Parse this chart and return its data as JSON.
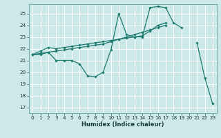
{
  "xlabel": "Humidex (Indice chaleur)",
  "xlim": [
    -0.5,
    23.5
  ],
  "ylim": [
    16.5,
    25.8
  ],
  "yticks": [
    17,
    18,
    19,
    20,
    21,
    22,
    23,
    24,
    25
  ],
  "xticks": [
    0,
    1,
    2,
    3,
    4,
    5,
    6,
    7,
    8,
    9,
    10,
    11,
    12,
    13,
    14,
    15,
    16,
    17,
    18,
    19,
    20,
    21,
    22,
    23
  ],
  "background_color": "#cde8e8",
  "grid_color": "#ffffff",
  "line_color": "#1a7a6e",
  "series": [
    [
      21.5,
      21.5,
      21.7,
      21.0,
      21.0,
      21.0,
      20.7,
      19.7,
      19.6,
      20.0,
      21.9,
      25.0,
      23.2,
      23.0,
      23.0,
      25.5,
      25.6,
      25.5,
      24.2,
      23.8,
      null,
      22.5,
      19.5,
      17.3
    ],
    [
      21.5,
      21.8,
      22.1,
      22.0,
      22.1,
      22.2,
      22.3,
      22.4,
      22.5,
      22.6,
      22.7,
      22.8,
      22.9,
      23.0,
      23.1,
      23.5,
      24.0,
      24.2,
      null,
      null,
      null,
      null,
      null,
      null
    ],
    [
      21.5,
      21.6,
      21.7,
      21.8,
      21.9,
      22.0,
      22.1,
      22.2,
      22.3,
      22.4,
      22.6,
      22.8,
      23.0,
      23.2,
      23.4,
      23.6,
      23.8,
      24.0,
      null,
      null,
      null,
      null,
      null,
      null
    ]
  ]
}
